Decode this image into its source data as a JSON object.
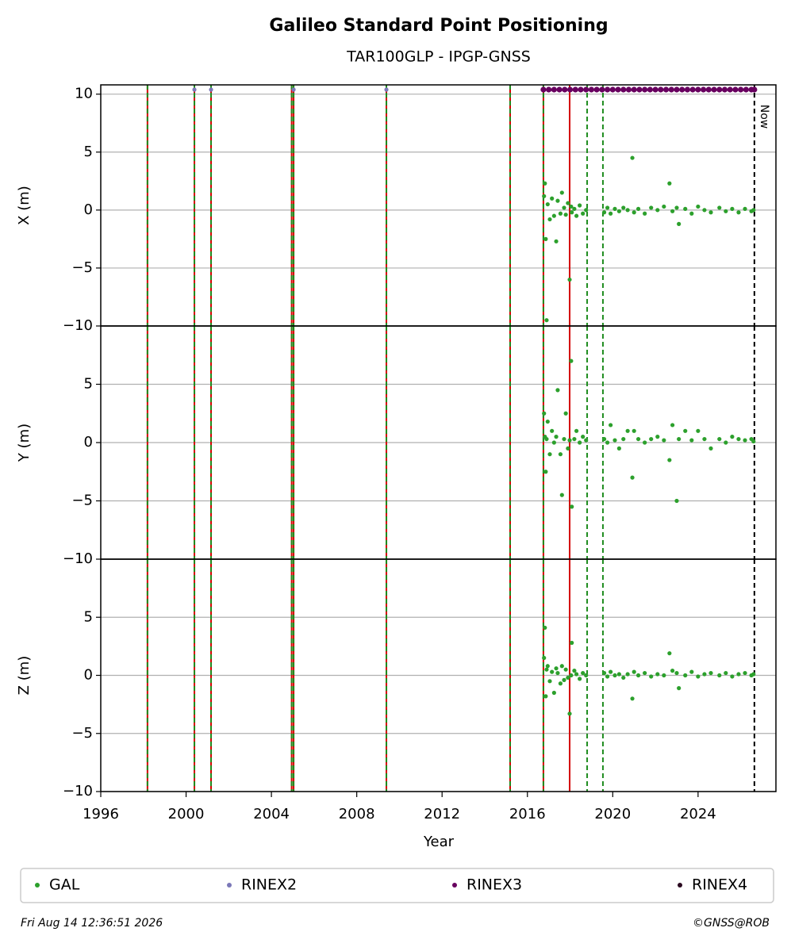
{
  "chart_data": {
    "type": "scatter",
    "title": "Galileo Standard Point Positioning",
    "subtitle": "TAR100GLP - IPGP-GNSS",
    "xlabel": "Year",
    "xlim": [
      1996,
      2027.65
    ],
    "xticks": [
      1996,
      2000,
      2004,
      2008,
      2012,
      2016,
      2020,
      2024
    ],
    "x": [
      2016.78,
      2016.82,
      2016.86,
      2016.9,
      2016.95,
      2017.05,
      2017.15,
      2017.25,
      2017.35,
      2017.42,
      2017.55,
      2017.62,
      2017.72,
      2017.8,
      2017.9,
      2017.98,
      2018.05,
      2018.08,
      2018.2,
      2018.3,
      2018.45,
      2018.6,
      2018.75,
      2019.6,
      2019.75,
      2019.9,
      2020.1,
      2020.3,
      2020.5,
      2020.7,
      2020.92,
      2021.0,
      2021.2,
      2021.5,
      2021.8,
      2022.1,
      2022.4,
      2022.66,
      2022.8,
      2023.0,
      2023.1,
      2023.4,
      2023.7,
      2024.0,
      2024.3,
      2024.6,
      2025.0,
      2025.3,
      2025.6,
      2025.9,
      2026.2,
      2026.5,
      2026.6
    ],
    "panels": [
      {
        "ylabel": "X (m)",
        "ylim": [
          -10,
          10.8
        ],
        "yticks": [
          {
            "value": -10,
            "label": "−10"
          },
          {
            "value": -5,
            "label": "−5"
          },
          0,
          5,
          10
        ],
        "values": [
          1.2,
          2.3,
          -2.5,
          -9.5,
          0.5,
          -0.8,
          1.0,
          -0.5,
          -2.7,
          0.8,
          -0.3,
          1.5,
          0.2,
          -0.4,
          0.6,
          -6.0,
          0.3,
          -0.2,
          0.1,
          -0.5,
          0.4,
          -0.3,
          0.0,
          -0.2,
          0.2,
          -0.3,
          0.1,
          -0.1,
          0.2,
          0.0,
          4.5,
          -0.2,
          0.1,
          -0.3,
          0.2,
          0.0,
          0.3,
          2.3,
          -0.1,
          0.2,
          -1.2,
          0.1,
          -0.3,
          0.3,
          0.0,
          -0.2,
          0.2,
          -0.1,
          0.1,
          -0.2,
          0.1,
          -0.1,
          0.0
        ]
      },
      {
        "ylabel": "Y (m)",
        "ylim": [
          -10,
          10
        ],
        "yticks": [
          {
            "value": -10,
            "label": "−10"
          },
          {
            "value": -5,
            "label": "−5"
          },
          0,
          5
        ],
        "values": [
          2.5,
          0.5,
          -2.5,
          0.3,
          1.8,
          -1.0,
          1.0,
          0.0,
          0.5,
          4.5,
          -1.0,
          -4.5,
          0.3,
          2.5,
          -0.5,
          0.2,
          7.0,
          -5.5,
          0.3,
          1.0,
          0.0,
          0.5,
          0.2,
          0.3,
          0.0,
          1.5,
          0.2,
          -0.5,
          0.3,
          1.0,
          -3.0,
          1.0,
          0.3,
          0.0,
          0.3,
          0.5,
          0.2,
          -1.5,
          1.5,
          -5.0,
          0.3,
          1.0,
          0.2,
          1.0,
          0.3,
          -0.5,
          0.3,
          0.0,
          0.5,
          0.3,
          0.2,
          0.3,
          0.1
        ]
      },
      {
        "ylabel": "Z (m)",
        "ylim": [
          -10,
          10
        ],
        "yticks": [
          {
            "value": -10,
            "label": "−10"
          },
          {
            "value": -5,
            "label": "−5"
          },
          0,
          5
        ],
        "values": [
          1.5,
          4.1,
          -1.8,
          0.5,
          0.8,
          -0.5,
          0.3,
          -1.5,
          0.6,
          0.2,
          -0.7,
          0.8,
          -0.4,
          0.5,
          -0.2,
          -3.3,
          0.0,
          2.8,
          0.4,
          0.1,
          -0.3,
          0.2,
          0.0,
          0.2,
          -0.1,
          0.3,
          0.0,
          0.1,
          -0.2,
          0.1,
          -2.0,
          0.3,
          0.0,
          0.2,
          -0.1,
          0.1,
          0.0,
          1.9,
          0.4,
          0.2,
          -1.1,
          0.0,
          0.3,
          -0.1,
          0.1,
          0.2,
          0.0,
          0.2,
          -0.1,
          0.1,
          0.2,
          0.0,
          0.1
        ]
      }
    ],
    "series": [
      {
        "name": "GAL",
        "color": "#2ca02c"
      },
      {
        "name": "RINEX2",
        "color": "#7b78b8",
        "x": [
          2000.39,
          2001.17,
          2005.04,
          2009.39
        ]
      },
      {
        "name": "RINEX3",
        "color": "#68005f",
        "x": [
          2016.75,
          2017.0,
          2017.25,
          2017.5,
          2017.75,
          2018.0,
          2018.25,
          2018.5,
          2018.75,
          2019.0,
          2019.25,
          2019.5,
          2019.75,
          2020.0,
          2020.25,
          2020.5,
          2020.75,
          2021.0,
          2021.25,
          2021.5,
          2021.75,
          2022.0,
          2022.25,
          2022.5,
          2022.75,
          2023.0,
          2023.25,
          2023.5,
          2023.75,
          2024.0,
          2024.25,
          2024.5,
          2024.75,
          2025.0,
          2025.25,
          2025.5,
          2025.75,
          2026.0,
          2026.25,
          2026.5,
          2026.64
        ]
      },
      {
        "name": "RINEX4",
        "color": "#2a0a20"
      }
    ],
    "event_lines": [
      {
        "x": 1998.19,
        "color": "#d40000",
        "dashed": false
      },
      {
        "x": 1998.19,
        "color": "#1e8c1e",
        "dashed": true
      },
      {
        "x": 2000.39,
        "color": "#d40000",
        "dashed": false
      },
      {
        "x": 2000.39,
        "color": "#1e8c1e",
        "dashed": true
      },
      {
        "x": 2001.17,
        "color": "#d40000",
        "dashed": false
      },
      {
        "x": 2001.17,
        "color": "#1e8c1e",
        "dashed": true
      },
      {
        "x": 2004.95,
        "color": "#d40000",
        "dashed": false
      },
      {
        "x": 2004.95,
        "color": "#1e8c1e",
        "dashed": true
      },
      {
        "x": 2005.04,
        "color": "#d40000",
        "dashed": false
      },
      {
        "x": 2005.04,
        "color": "#1e8c1e",
        "dashed": true
      },
      {
        "x": 2009.39,
        "color": "#d40000",
        "dashed": false
      },
      {
        "x": 2009.39,
        "color": "#1e8c1e",
        "dashed": true
      },
      {
        "x": 2015.19,
        "color": "#d40000",
        "dashed": false
      },
      {
        "x": 2015.19,
        "color": "#1e8c1e",
        "dashed": true
      },
      {
        "x": 2016.75,
        "color": "#d40000",
        "dashed": false
      },
      {
        "x": 2016.75,
        "color": "#1e8c1e",
        "dashed": true
      },
      {
        "x": 2017.98,
        "color": "#d40000",
        "dashed": false
      },
      {
        "x": 2018.8,
        "color": "#1e8c1e",
        "dashed": true
      },
      {
        "x": 2019.54,
        "color": "#1e8c1e",
        "dashed": true
      }
    ],
    "now": {
      "x": 2026.64,
      "label": "Now"
    },
    "timestamp": "Fri Aug 14 12:36:51 2026",
    "credit": "©GNSS@ROB"
  }
}
